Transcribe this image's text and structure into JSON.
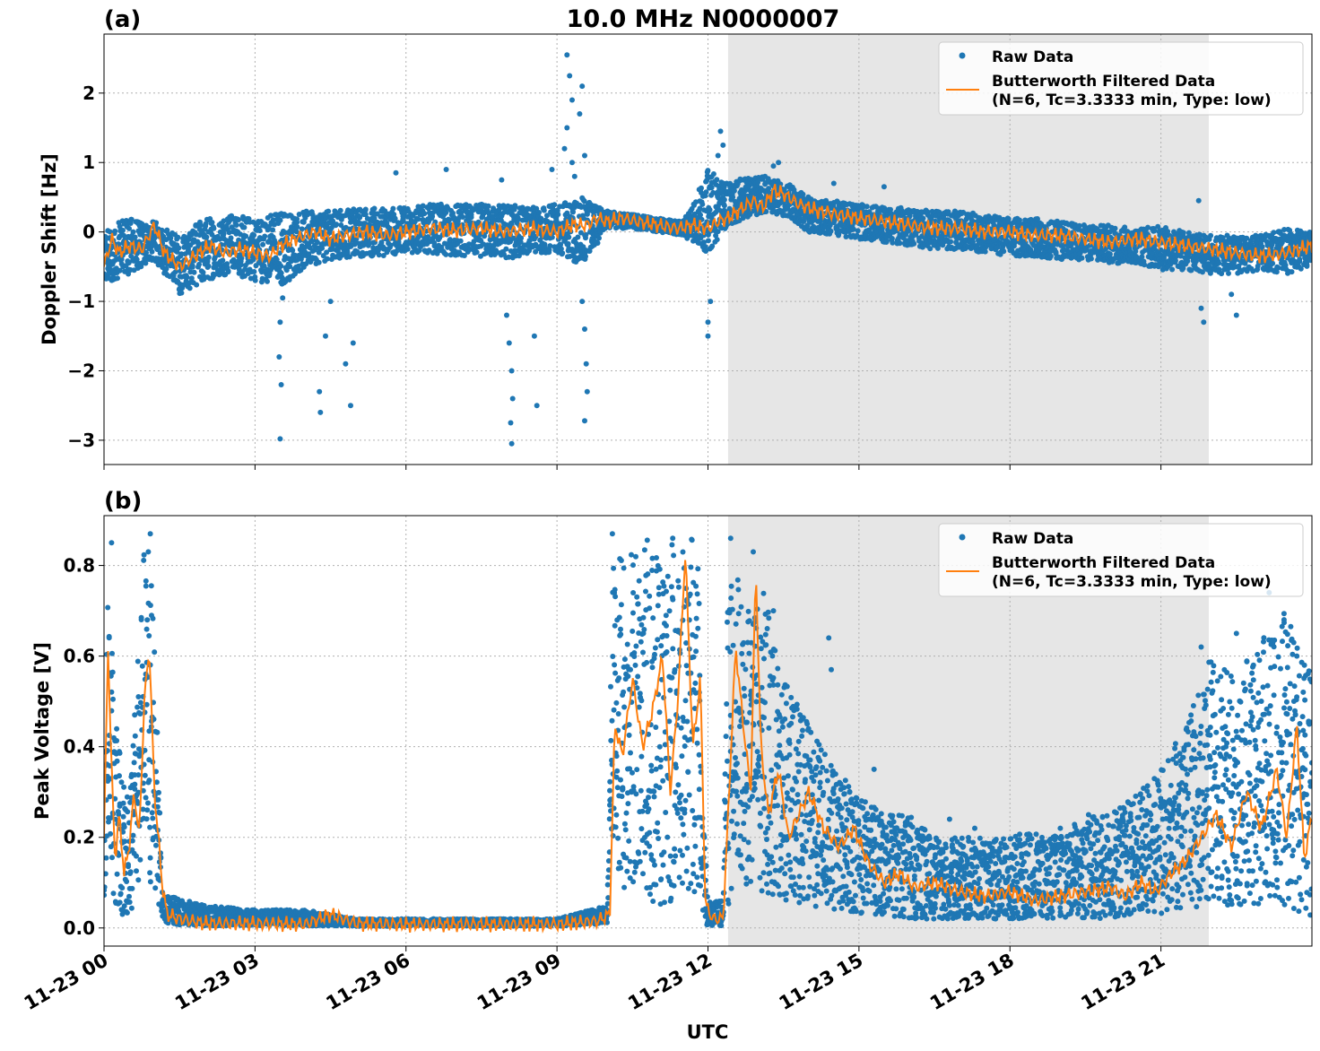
{
  "figure": {
    "title": "10.0 MHz N0000007",
    "xlabel": "UTC"
  },
  "colors": {
    "raw": "#1f77b4",
    "filtered": "#ff7f0e",
    "shade": "#e6e6e6",
    "grid": "#b0b0b0"
  },
  "x_ticks": [
    "11-23 00",
    "11-23 03",
    "11-23 06",
    "11-23 09",
    "11-23 12",
    "11-23 15",
    "11-23 18",
    "11-23 21"
  ],
  "chart_data": [
    {
      "type": "scatter",
      "panel_label": "(a)",
      "ylabel": "Doppler Shift [Hz]",
      "xlim_hours": [
        0,
        24
      ],
      "ylim": [
        -3.35,
        2.85
      ],
      "yticks": [
        -3,
        -2,
        -1,
        0,
        1,
        2
      ],
      "ytick_labels": [
        "−3",
        "−2",
        "−1",
        "0",
        "1",
        "2"
      ],
      "shaded_region_hours": [
        12.4,
        21.95
      ],
      "grid": true,
      "legend_position": "upper right",
      "legend": {
        "raw": "Raw Data",
        "filtered_line1": "Butterworth Filtered Data",
        "filtered_line2": "(N=6, Tc=3.3333 min, Type: low)"
      },
      "series": [
        {
          "name": "Butterworth Filtered Data",
          "x": [
            0,
            0.15,
            0.3,
            0.5,
            0.75,
            1.0,
            1.2,
            1.5,
            1.8,
            2.1,
            2.4,
            2.7,
            3.0,
            3.3,
            3.5,
            3.8,
            4.2,
            4.5,
            4.8,
            5.2,
            5.6,
            6.0,
            6.5,
            7.0,
            7.5,
            8.0,
            8.5,
            9.0,
            9.3,
            9.6,
            9.8,
            10.0,
            10.3,
            10.6,
            11.0,
            11.4,
            11.7,
            12.0,
            12.2,
            12.4,
            12.6,
            12.9,
            13.1,
            13.3,
            13.5,
            13.8,
            14.2,
            14.6,
            15.0,
            15.5,
            16.0,
            16.5,
            17.0,
            17.5,
            18.0,
            18.5,
            19.0,
            19.5,
            20.0,
            20.5,
            21.0,
            21.5,
            22.0,
            22.5,
            23.0,
            23.5,
            24.0
          ],
          "y": [
            -0.5,
            -0.1,
            -0.3,
            -0.2,
            -0.25,
            0.1,
            -0.3,
            -0.5,
            -0.35,
            -0.2,
            -0.3,
            -0.25,
            -0.3,
            -0.35,
            -0.2,
            -0.1,
            0.0,
            -0.1,
            -0.05,
            0.0,
            -0.05,
            0.0,
            0.05,
            0.02,
            0.05,
            0.0,
            0.05,
            0.0,
            0.1,
            0.1,
            0.2,
            0.15,
            0.2,
            0.15,
            0.1,
            0.05,
            0.1,
            0.05,
            0.15,
            0.2,
            0.3,
            0.45,
            0.35,
            0.6,
            0.55,
            0.4,
            0.3,
            0.25,
            0.2,
            0.15,
            0.1,
            0.05,
            0.05,
            0.0,
            0.0,
            -0.05,
            -0.05,
            -0.1,
            -0.15,
            -0.1,
            -0.15,
            -0.2,
            -0.25,
            -0.3,
            -0.35,
            -0.3,
            -0.2
          ]
        },
        {
          "name": "Raw Data",
          "band_x": [
            0,
            0.5,
            1.0,
            1.5,
            2.0,
            2.5,
            3.0,
            3.5,
            4.0,
            4.5,
            5.0,
            5.5,
            6.0,
            6.5,
            7.0,
            7.5,
            8.0,
            8.5,
            9.0,
            9.5,
            10.0,
            10.5,
            11.0,
            11.5,
            12.0,
            12.4,
            12.8,
            13.2,
            13.6,
            14.0,
            14.5,
            15.0,
            15.5,
            16.0,
            16.5,
            17.0,
            17.5,
            18.0,
            18.5,
            19.0,
            19.5,
            20.0,
            20.5,
            21.0,
            21.5,
            22.0,
            22.5,
            23.0,
            23.5,
            24.0
          ],
          "band_low": [
            -0.8,
            -0.6,
            -0.4,
            -0.9,
            -0.7,
            -0.6,
            -0.7,
            -0.8,
            -0.5,
            -0.4,
            -0.35,
            -0.35,
            -0.3,
            -0.3,
            -0.35,
            -0.35,
            -0.4,
            -0.3,
            -0.3,
            -0.5,
            0.05,
            0.05,
            0.0,
            -0.05,
            -0.3,
            0.1,
            0.2,
            0.3,
            0.2,
            0.0,
            -0.05,
            -0.1,
            -0.15,
            -0.2,
            -0.25,
            -0.25,
            -0.3,
            -0.35,
            -0.35,
            -0.4,
            -0.4,
            -0.45,
            -0.45,
            -0.55,
            -0.55,
            -0.6,
            -0.6,
            -0.55,
            -0.6,
            -0.5
          ],
          "band_high": [
            0.05,
            0.2,
            0.15,
            -0.05,
            0.2,
            0.25,
            0.2,
            0.3,
            0.3,
            0.3,
            0.35,
            0.35,
            0.35,
            0.4,
            0.4,
            0.4,
            0.4,
            0.35,
            0.4,
            0.5,
            0.3,
            0.25,
            0.2,
            0.15,
            0.9,
            0.7,
            0.8,
            0.8,
            0.7,
            0.5,
            0.45,
            0.4,
            0.35,
            0.35,
            0.3,
            0.3,
            0.25,
            0.2,
            0.2,
            0.15,
            0.1,
            0.1,
            0.05,
            0.1,
            0.0,
            -0.05,
            -0.05,
            -0.05,
            0.05,
            0.0
          ],
          "outliers": [
            [
              3.5,
              -2.98
            ],
            [
              3.52,
              -2.2
            ],
            [
              3.48,
              -1.8
            ],
            [
              3.5,
              -1.3
            ],
            [
              3.55,
              -0.95
            ],
            [
              4.3,
              -2.6
            ],
            [
              4.28,
              -2.3
            ],
            [
              4.4,
              -1.5
            ],
            [
              4.5,
              -1.0
            ],
            [
              4.8,
              -1.9
            ],
            [
              4.9,
              -2.5
            ],
            [
              4.95,
              -1.6
            ],
            [
              8.1,
              -3.05
            ],
            [
              8.08,
              -2.75
            ],
            [
              8.12,
              -2.4
            ],
            [
              8.1,
              -2.0
            ],
            [
              8.05,
              -1.6
            ],
            [
              8.0,
              -1.2
            ],
            [
              8.6,
              -2.5
            ],
            [
              8.55,
              -1.5
            ],
            [
              9.55,
              -2.72
            ],
            [
              9.6,
              -2.3
            ],
            [
              9.58,
              -1.9
            ],
            [
              9.55,
              -1.4
            ],
            [
              9.5,
              -1.0
            ],
            [
              9.2,
              2.55
            ],
            [
              9.25,
              2.25
            ],
            [
              9.3,
              1.9
            ],
            [
              9.2,
              1.5
            ],
            [
              9.15,
              1.2
            ],
            [
              9.3,
              1.0
            ],
            [
              9.35,
              0.8
            ],
            [
              9.5,
              2.1
            ],
            [
              9.45,
              1.7
            ],
            [
              9.55,
              1.1
            ],
            [
              12.0,
              -1.5
            ],
            [
              12.0,
              -1.3
            ],
            [
              12.05,
              -1.0
            ],
            [
              12.25,
              1.45
            ],
            [
              12.3,
              1.25
            ],
            [
              12.2,
              1.1
            ],
            [
              13.4,
              1.0
            ],
            [
              13.3,
              0.95
            ],
            [
              14.5,
              0.7
            ],
            [
              15.5,
              0.65
            ],
            [
              6.8,
              0.9
            ],
            [
              7.9,
              0.75
            ],
            [
              5.8,
              0.85
            ],
            [
              8.9,
              0.9
            ],
            [
              21.85,
              -1.3
            ],
            [
              21.8,
              -1.1
            ],
            [
              22.5,
              -1.2
            ],
            [
              22.4,
              -0.9
            ],
            [
              21.75,
              0.45
            ]
          ]
        }
      ]
    },
    {
      "type": "scatter",
      "panel_label": "(b)",
      "ylabel": "Peak Voltage [V]",
      "xlim_hours": [
        0,
        24
      ],
      "ylim": [
        -0.04,
        0.91
      ],
      "yticks": [
        0.0,
        0.2,
        0.4,
        0.6,
        0.8
      ],
      "ytick_labels": [
        "0.0",
        "0.2",
        "0.4",
        "0.6",
        "0.8"
      ],
      "shaded_region_hours": [
        12.4,
        21.95
      ],
      "grid": true,
      "legend_position": "upper right",
      "legend": {
        "raw": "Raw Data",
        "filtered_line1": "Butterworth Filtered Data",
        "filtered_line2": "(N=6, Tc=3.3333 min, Type: low)"
      },
      "series": [
        {
          "name": "Butterworth Filtered Data",
          "x": [
            0,
            0.08,
            0.15,
            0.22,
            0.3,
            0.4,
            0.5,
            0.6,
            0.7,
            0.8,
            0.9,
            1.0,
            1.08,
            1.15,
            1.25,
            1.5,
            2.0,
            3.0,
            4.0,
            4.5,
            5.0,
            6.0,
            7.0,
            8.0,
            9.0,
            9.8,
            10.05,
            10.15,
            10.3,
            10.5,
            10.7,
            10.9,
            11.1,
            11.25,
            11.4,
            11.55,
            11.7,
            11.85,
            11.95,
            12.1,
            12.3,
            12.4,
            12.55,
            12.7,
            12.85,
            12.95,
            13.05,
            13.2,
            13.4,
            13.6,
            13.8,
            14.0,
            14.3,
            14.6,
            14.9,
            15.2,
            15.5,
            15.8,
            16.1,
            16.5,
            17.0,
            17.5,
            18.0,
            18.5,
            19.0,
            19.5,
            20.0,
            20.3,
            20.6,
            20.9,
            21.2,
            21.5,
            21.8,
            22.1,
            22.4,
            22.7,
            23.0,
            23.3,
            23.5,
            23.7,
            23.85,
            24.0
          ],
          "y": [
            0.2,
            0.62,
            0.35,
            0.15,
            0.25,
            0.12,
            0.18,
            0.3,
            0.2,
            0.5,
            0.62,
            0.3,
            0.2,
            0.1,
            0.03,
            0.02,
            0.01,
            0.01,
            0.008,
            0.03,
            0.01,
            0.008,
            0.008,
            0.008,
            0.008,
            0.015,
            0.03,
            0.45,
            0.38,
            0.55,
            0.4,
            0.48,
            0.6,
            0.3,
            0.5,
            0.83,
            0.4,
            0.55,
            0.05,
            0.02,
            0.02,
            0.25,
            0.62,
            0.45,
            0.3,
            0.8,
            0.4,
            0.25,
            0.35,
            0.2,
            0.25,
            0.3,
            0.22,
            0.18,
            0.22,
            0.14,
            0.1,
            0.12,
            0.09,
            0.1,
            0.08,
            0.07,
            0.08,
            0.06,
            0.07,
            0.08,
            0.09,
            0.07,
            0.1,
            0.08,
            0.12,
            0.15,
            0.2,
            0.25,
            0.18,
            0.3,
            0.22,
            0.35,
            0.2,
            0.45,
            0.15,
            0.25
          ]
        },
        {
          "name": "Raw Data",
          "band_x": [
            0,
            0.1,
            0.2,
            0.35,
            0.5,
            0.65,
            0.8,
            0.95,
            1.05,
            1.15,
            1.3,
            2.0,
            3.0,
            4.0,
            5.0,
            6.0,
            7.0,
            8.0,
            9.0,
            10.0,
            10.1,
            10.3,
            10.6,
            10.9,
            11.2,
            11.5,
            11.8,
            11.9,
            12.0,
            12.3,
            12.4,
            12.5,
            12.8,
            13.1,
            13.5,
            14.0,
            14.5,
            15.0,
            15.5,
            16.0,
            16.5,
            17.0,
            17.5,
            18.0,
            18.5,
            19.0,
            19.5,
            20.0,
            20.5,
            21.0,
            21.5,
            22.0,
            22.5,
            23.0,
            23.5,
            24.0
          ],
          "band_low": [
            0.05,
            0.25,
            0.05,
            0.03,
            0.03,
            0.05,
            0.1,
            0.1,
            0.05,
            0.02,
            0.008,
            0.005,
            0.005,
            0.005,
            0.004,
            0.004,
            0.004,
            0.004,
            0.004,
            0.01,
            0.2,
            0.08,
            0.1,
            0.05,
            0.05,
            0.1,
            0.05,
            0.01,
            0.005,
            0.005,
            0.02,
            0.1,
            0.08,
            0.08,
            0.06,
            0.05,
            0.04,
            0.03,
            0.03,
            0.02,
            0.02,
            0.02,
            0.02,
            0.02,
            0.02,
            0.02,
            0.02,
            0.02,
            0.03,
            0.03,
            0.04,
            0.05,
            0.05,
            0.05,
            0.05,
            0.02
          ],
          "band_high": [
            0.3,
            0.85,
            0.5,
            0.35,
            0.3,
            0.55,
            0.85,
            0.75,
            0.5,
            0.08,
            0.07,
            0.05,
            0.04,
            0.04,
            0.02,
            0.02,
            0.02,
            0.02,
            0.02,
            0.05,
            0.8,
            0.86,
            0.86,
            0.86,
            0.86,
            0.86,
            0.86,
            0.3,
            0.06,
            0.06,
            0.85,
            0.8,
            0.7,
            0.75,
            0.55,
            0.45,
            0.35,
            0.3,
            0.25,
            0.25,
            0.2,
            0.2,
            0.2,
            0.2,
            0.22,
            0.2,
            0.25,
            0.25,
            0.3,
            0.35,
            0.45,
            0.6,
            0.55,
            0.65,
            0.7,
            0.55
          ],
          "outliers": [
            [
              0.15,
              0.85
            ],
            [
              0.92,
              0.87
            ],
            [
              0.88,
              0.83
            ],
            [
              10.1,
              0.87
            ],
            [
              11.3,
              0.86
            ],
            [
              12.45,
              0.86
            ],
            [
              12.9,
              0.83
            ],
            [
              13.3,
              0.7
            ],
            [
              14.4,
              0.64
            ],
            [
              14.45,
              0.57
            ],
            [
              15.3,
              0.35
            ],
            [
              16.8,
              0.24
            ],
            [
              17.3,
              0.22
            ],
            [
              19.0,
              0.22
            ],
            [
              21.8,
              0.62
            ],
            [
              22.5,
              0.65
            ],
            [
              23.15,
              0.74
            ],
            [
              23.7,
              0.6
            ],
            [
              23.85,
              0.58
            ]
          ]
        }
      ]
    }
  ]
}
